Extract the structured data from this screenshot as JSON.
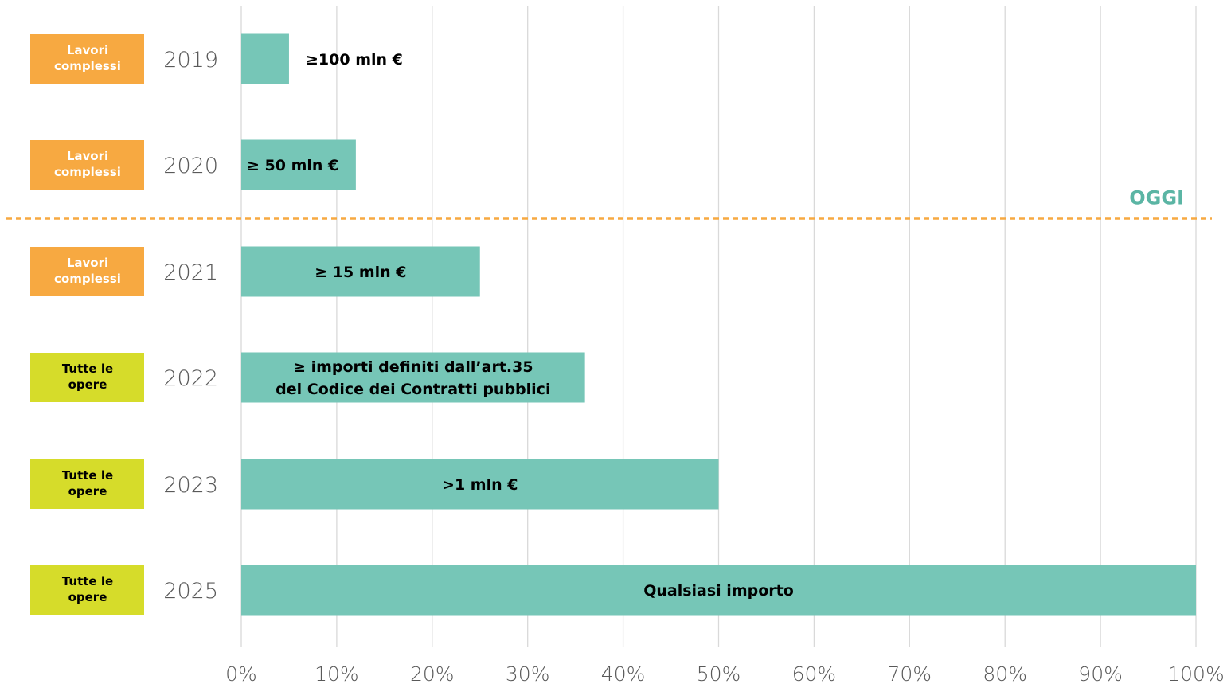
{
  "chart_data": {
    "type": "bar",
    "orientation": "horizontal",
    "categories": [
      "2019",
      "2020",
      "2021",
      "2022",
      "2023",
      "2025"
    ],
    "values": [
      5,
      12,
      25,
      36,
      50,
      100
    ],
    "bar_labels": [
      [
        "≥100 mln €"
      ],
      [
        "≥ 50 mln €"
      ],
      [
        "≥ 15 mln €"
      ],
      [
        "≥ importi definiti dall’art.35",
        "del Codice dei Contratti pubblici"
      ],
      [
        ">1 mln €"
      ],
      [
        "Qualsiasi importo"
      ]
    ],
    "badges": [
      {
        "lines": [
          "Lavori",
          "complessi"
        ],
        "kind": "lavori"
      },
      {
        "lines": [
          "Lavori",
          "complessi"
        ],
        "kind": "lavori"
      },
      {
        "lines": [
          "Lavori",
          "complessi"
        ],
        "kind": "lavori"
      },
      {
        "lines": [
          "Tutte le",
          "opere"
        ],
        "kind": "tutte"
      },
      {
        "lines": [
          "Tutte le",
          "opere"
        ],
        "kind": "tutte"
      },
      {
        "lines": [
          "Tutte le",
          "opere"
        ],
        "kind": "tutte"
      }
    ],
    "x_ticks": [
      "0%",
      "10%",
      "20%",
      "30%",
      "40%",
      "50%",
      "60%",
      "70%",
      "80%",
      "90%",
      "100%"
    ],
    "xlim": [
      0,
      100
    ],
    "grid": true,
    "marker": {
      "label": "OGGI",
      "between_categories": [
        "2020",
        "2021"
      ]
    },
    "colors": {
      "bar": "#76c6b7",
      "lavori_badge": "#f7a941",
      "tutte_badge": "#d6dc2a",
      "lavori_text": "#ffffff",
      "tutte_text": "#000000",
      "marker_line": "#f7a941",
      "marker_text": "#5bb5a4"
    }
  }
}
